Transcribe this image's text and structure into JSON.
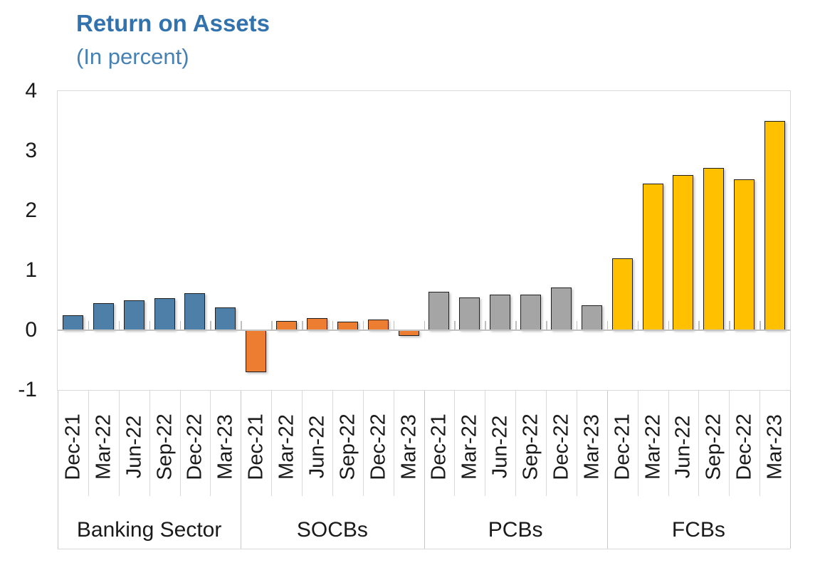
{
  "title": "Return on Assets",
  "subtitle": "(In percent)",
  "colors": {
    "title": "#3273AE",
    "subtitle": "#4681B4",
    "axis_text": "#1A1A1A",
    "plot_border": "#D9D9D9",
    "zero_line": "#C2C2C2",
    "tick": "#BFBFBF",
    "category_separator": "#D9D9D9",
    "group_separator": "#C9C9C9",
    "bar_border": "#1F1F1F"
  },
  "chart_data": {
    "type": "bar",
    "title": "Return on Assets",
    "subtitle": "(In percent)",
    "categories": [
      "Dec-21",
      "Mar-22",
      "Jun-22",
      "Sep-22",
      "Dec-22",
      "Mar-23"
    ],
    "series": [
      {
        "name": "Banking Sector",
        "color": "#4E7FA9",
        "values": [
          0.25,
          0.45,
          0.5,
          0.53,
          0.62,
          0.38
        ]
      },
      {
        "name": "SOCBs",
        "color": "#ED7D31",
        "values": [
          -0.7,
          0.15,
          0.2,
          0.14,
          0.18,
          -0.1
        ]
      },
      {
        "name": "PCBs",
        "color": "#A5A5A5",
        "values": [
          0.64,
          0.55,
          0.6,
          0.6,
          0.72,
          0.42
        ]
      },
      {
        "name": "FCBs",
        "color": "#FFC000",
        "values": [
          1.2,
          2.45,
          2.6,
          2.72,
          2.52,
          3.5
        ]
      }
    ],
    "ylim": [
      -1,
      4
    ],
    "yticks": [
      4,
      3,
      2,
      1,
      0,
      -1
    ],
    "grid": false,
    "legend": "none"
  }
}
